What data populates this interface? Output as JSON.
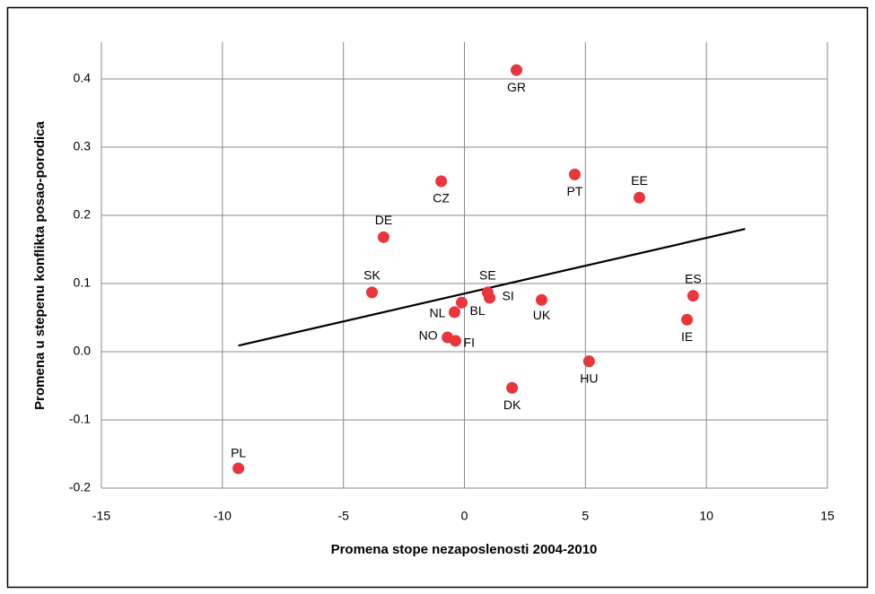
{
  "chart_data": {
    "type": "scatter",
    "x_label": "Promena stope nezaposlenosti 2004-2010",
    "y_label": "Promena u stepenu konflikta posao-porodica",
    "xlim": [
      -15,
      15
    ],
    "xticks": [
      -15,
      -10,
      -5,
      0,
      5,
      10,
      15
    ],
    "ylim": [
      -0.2,
      0.45
    ],
    "yticks": [
      -0.2,
      -0.1,
      {
        "value": 0,
        "label": "0.0"
      },
      0.1,
      0.2,
      0.3,
      0.4
    ],
    "grid": true,
    "color": "#e8363c",
    "labels": [
      "PL",
      "SK",
      "DE",
      "CZ",
      "GR",
      "PT",
      "EE",
      "ES",
      "IE",
      "UK",
      "HU",
      "DK",
      "SE",
      "SI",
      "BL",
      "NL",
      "NO",
      "FI"
    ],
    "x": [
      -9.34,
      -3.82,
      -3.34,
      -0.96,
      2.15,
      4.56,
      7.23,
      9.45,
      9.2,
      3.19,
      5.15,
      1.97,
      0.96,
      1.04,
      -0.11,
      -0.41,
      -0.7,
      -0.37
    ],
    "y": [
      -0.171,
      0.087,
      0.168,
      0.25,
      0.413,
      0.26,
      0.226,
      0.082,
      0.047,
      0.076,
      -0.014,
      -0.053,
      0.087,
      0.079,
      0.072,
      0.058,
      0.021,
      0.016
    ],
    "trendline": {
      "x": [
        -9.34,
        11.6
      ],
      "y": [
        0.009,
        0.18
      ],
      "color": "#000000"
    }
  }
}
